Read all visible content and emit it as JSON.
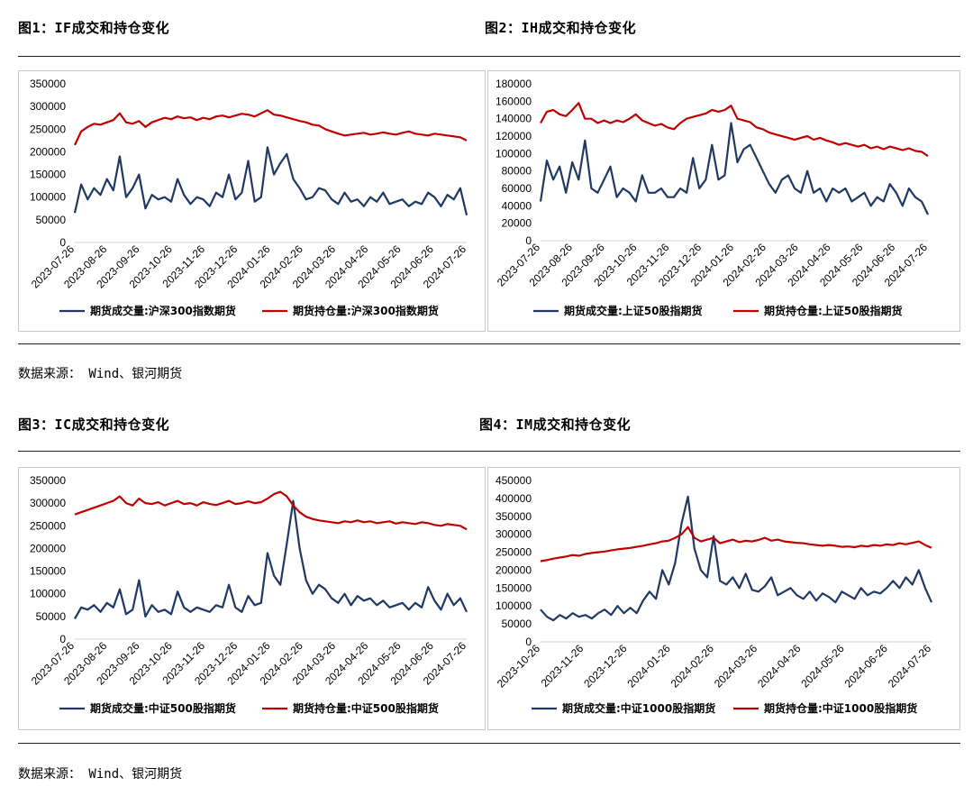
{
  "figures": [
    {
      "title": "图1：IF成交和持仓变化"
    },
    {
      "title": "图2：IH成交和持仓变化"
    },
    {
      "title": "图3：IC成交和持仓变化"
    },
    {
      "title": "图4：IM成交和持仓变化"
    }
  ],
  "sources": {
    "top": "数据来源： Wind、银河期货",
    "bottom": "数据来源： Wind、银河期货"
  },
  "colors": {
    "volume": "#1f3864",
    "open_interest": "#c00000"
  },
  "chart_data": [
    {
      "type": "line",
      "ylim": [
        0,
        350000
      ],
      "yticks": [
        0,
        50000,
        100000,
        150000,
        200000,
        250000,
        300000,
        350000
      ],
      "xticks": [
        "2023-07-26",
        "2023-08-26",
        "2023-09-26",
        "2023-10-26",
        "2023-11-26",
        "2023-12-26",
        "2024-01-26",
        "2024-02-26",
        "2024-03-26",
        "2024-04-26",
        "2024-05-26",
        "2024-06-26",
        "2024-07-26"
      ],
      "series": [
        {
          "name": "期货成交量:沪深300指数期货",
          "values": [
            65000,
            128000,
            95000,
            120000,
            105000,
            140000,
            115000,
            190000,
            100000,
            120000,
            150000,
            75000,
            105000,
            95000,
            100000,
            90000,
            140000,
            105000,
            85000,
            100000,
            95000,
            80000,
            110000,
            100000,
            150000,
            95000,
            110000,
            180000,
            90000,
            100000,
            210000,
            150000,
            175000,
            195000,
            140000,
            120000,
            95000,
            100000,
            120000,
            115000,
            95000,
            85000,
            110000,
            90000,
            95000,
            80000,
            100000,
            90000,
            110000,
            85000,
            90000,
            95000,
            80000,
            90000,
            85000,
            110000,
            100000,
            80000,
            105000,
            95000,
            120000,
            60000
          ]
        },
        {
          "name": "期货持仓量:沪深300指数期货",
          "values": [
            215000,
            245000,
            255000,
            262000,
            260000,
            265000,
            270000,
            285000,
            265000,
            262000,
            268000,
            255000,
            265000,
            270000,
            275000,
            272000,
            278000,
            274000,
            276000,
            270000,
            275000,
            272000,
            278000,
            280000,
            276000,
            280000,
            284000,
            282000,
            278000,
            285000,
            292000,
            282000,
            280000,
            276000,
            272000,
            268000,
            265000,
            260000,
            258000,
            250000,
            245000,
            240000,
            236000,
            238000,
            240000,
            242000,
            238000,
            240000,
            243000,
            240000,
            238000,
            242000,
            245000,
            240000,
            238000,
            236000,
            240000,
            238000,
            236000,
            234000,
            232000,
            225000
          ]
        }
      ]
    },
    {
      "type": "line",
      "ylim": [
        0,
        180000
      ],
      "yticks": [
        0,
        20000,
        40000,
        60000,
        80000,
        100000,
        120000,
        140000,
        160000,
        180000
      ],
      "xticks": [
        "2023-07-26",
        "2023-08-26",
        "2023-09-26",
        "2023-10-26",
        "2023-11-26",
        "2023-12-26",
        "2024-01-26",
        "2024-02-26",
        "2024-03-26",
        "2024-04-26",
        "2024-05-26",
        "2024-06-26",
        "2024-07-26"
      ],
      "series": [
        {
          "name": "期货成交量:上证50股指期货",
          "values": [
            45000,
            92000,
            70000,
            85000,
            55000,
            90000,
            70000,
            115000,
            60000,
            55000,
            70000,
            85000,
            50000,
            60000,
            55000,
            45000,
            75000,
            55000,
            55000,
            60000,
            50000,
            50000,
            60000,
            55000,
            95000,
            60000,
            70000,
            110000,
            70000,
            75000,
            135000,
            90000,
            105000,
            110000,
            95000,
            80000,
            65000,
            55000,
            70000,
            75000,
            60000,
            55000,
            80000,
            55000,
            60000,
            45000,
            60000,
            55000,
            60000,
            45000,
            50000,
            55000,
            40000,
            50000,
            45000,
            65000,
            55000,
            40000,
            60000,
            50000,
            45000,
            30000
          ]
        },
        {
          "name": "期货持仓量:上证50股指期货",
          "values": [
            135000,
            148000,
            150000,
            145000,
            143000,
            150000,
            158000,
            140000,
            140000,
            135000,
            138000,
            135000,
            138000,
            136000,
            140000,
            145000,
            138000,
            135000,
            132000,
            134000,
            130000,
            128000,
            135000,
            140000,
            142000,
            144000,
            146000,
            150000,
            148000,
            150000,
            155000,
            140000,
            138000,
            136000,
            130000,
            128000,
            124000,
            122000,
            120000,
            118000,
            116000,
            118000,
            120000,
            116000,
            118000,
            115000,
            113000,
            110000,
            112000,
            110000,
            108000,
            110000,
            106000,
            108000,
            105000,
            108000,
            106000,
            104000,
            106000,
            103000,
            102000,
            97000
          ]
        }
      ]
    },
    {
      "type": "line",
      "ylim": [
        0,
        350000
      ],
      "yticks": [
        0,
        50000,
        100000,
        150000,
        200000,
        250000,
        300000,
        350000
      ],
      "xticks": [
        "2023-07-26",
        "2023-08-26",
        "2023-09-26",
        "2023-10-26",
        "2023-11-26",
        "2023-12-26",
        "2024-01-26",
        "2024-02-26",
        "2024-03-26",
        "2024-04-26",
        "2024-05-26",
        "2024-06-26",
        "2024-07-26"
      ],
      "series": [
        {
          "name": "期货成交量:中证500股指期货",
          "values": [
            45000,
            70000,
            65000,
            75000,
            60000,
            80000,
            70000,
            110000,
            55000,
            65000,
            130000,
            50000,
            75000,
            60000,
            65000,
            55000,
            105000,
            70000,
            60000,
            70000,
            65000,
            60000,
            75000,
            70000,
            120000,
            70000,
            60000,
            95000,
            75000,
            80000,
            190000,
            140000,
            120000,
            210000,
            305000,
            200000,
            130000,
            100000,
            120000,
            110000,
            90000,
            80000,
            100000,
            75000,
            95000,
            85000,
            90000,
            75000,
            85000,
            70000,
            75000,
            80000,
            65000,
            80000,
            70000,
            115000,
            85000,
            65000,
            100000,
            75000,
            90000,
            60000
          ]
        },
        {
          "name": "期货持仓量:中证500股指期货",
          "values": [
            275000,
            280000,
            285000,
            290000,
            295000,
            300000,
            305000,
            315000,
            300000,
            295000,
            310000,
            300000,
            298000,
            302000,
            295000,
            300000,
            305000,
            298000,
            300000,
            295000,
            302000,
            298000,
            296000,
            300000,
            305000,
            298000,
            300000,
            304000,
            300000,
            302000,
            310000,
            320000,
            325000,
            315000,
            295000,
            280000,
            270000,
            265000,
            262000,
            260000,
            258000,
            256000,
            260000,
            258000,
            262000,
            258000,
            260000,
            256000,
            258000,
            260000,
            255000,
            258000,
            256000,
            254000,
            258000,
            256000,
            252000,
            250000,
            254000,
            252000,
            250000,
            242000
          ]
        }
      ]
    },
    {
      "type": "line",
      "ylim": [
        0,
        450000
      ],
      "yticks": [
        0,
        50000,
        100000,
        150000,
        200000,
        250000,
        300000,
        350000,
        400000,
        450000
      ],
      "xticks": [
        "2023-10-26",
        "2023-11-26",
        "2023-12-26",
        "2024-01-26",
        "2024-02-26",
        "2024-03-26",
        "2024-04-26",
        "2024-05-26",
        "2024-06-26",
        "2024-07-26"
      ],
      "series": [
        {
          "name": "期货成交量:中证1000股指期货",
          "values": [
            90000,
            70000,
            60000,
            75000,
            65000,
            80000,
            70000,
            75000,
            65000,
            80000,
            90000,
            75000,
            100000,
            80000,
            95000,
            80000,
            115000,
            140000,
            120000,
            200000,
            160000,
            220000,
            330000,
            405000,
            260000,
            200000,
            180000,
            295000,
            170000,
            160000,
            180000,
            150000,
            190000,
            145000,
            140000,
            155000,
            180000,
            130000,
            140000,
            150000,
            130000,
            120000,
            140000,
            115000,
            135000,
            125000,
            110000,
            140000,
            130000,
            120000,
            150000,
            130000,
            140000,
            135000,
            150000,
            170000,
            150000,
            180000,
            160000,
            200000,
            150000,
            110000
          ]
        },
        {
          "name": "期货持仓量:中证1000股指期货",
          "values": [
            225000,
            228000,
            232000,
            235000,
            238000,
            242000,
            240000,
            245000,
            248000,
            250000,
            252000,
            255000,
            258000,
            260000,
            262000,
            265000,
            268000,
            272000,
            275000,
            280000,
            282000,
            290000,
            300000,
            320000,
            290000,
            280000,
            285000,
            290000,
            275000,
            280000,
            285000,
            278000,
            282000,
            280000,
            284000,
            290000,
            282000,
            285000,
            280000,
            278000,
            276000,
            275000,
            272000,
            270000,
            268000,
            270000,
            268000,
            265000,
            266000,
            264000,
            268000,
            266000,
            270000,
            268000,
            272000,
            270000,
            275000,
            272000,
            276000,
            280000,
            270000,
            262000
          ]
        }
      ]
    }
  ]
}
